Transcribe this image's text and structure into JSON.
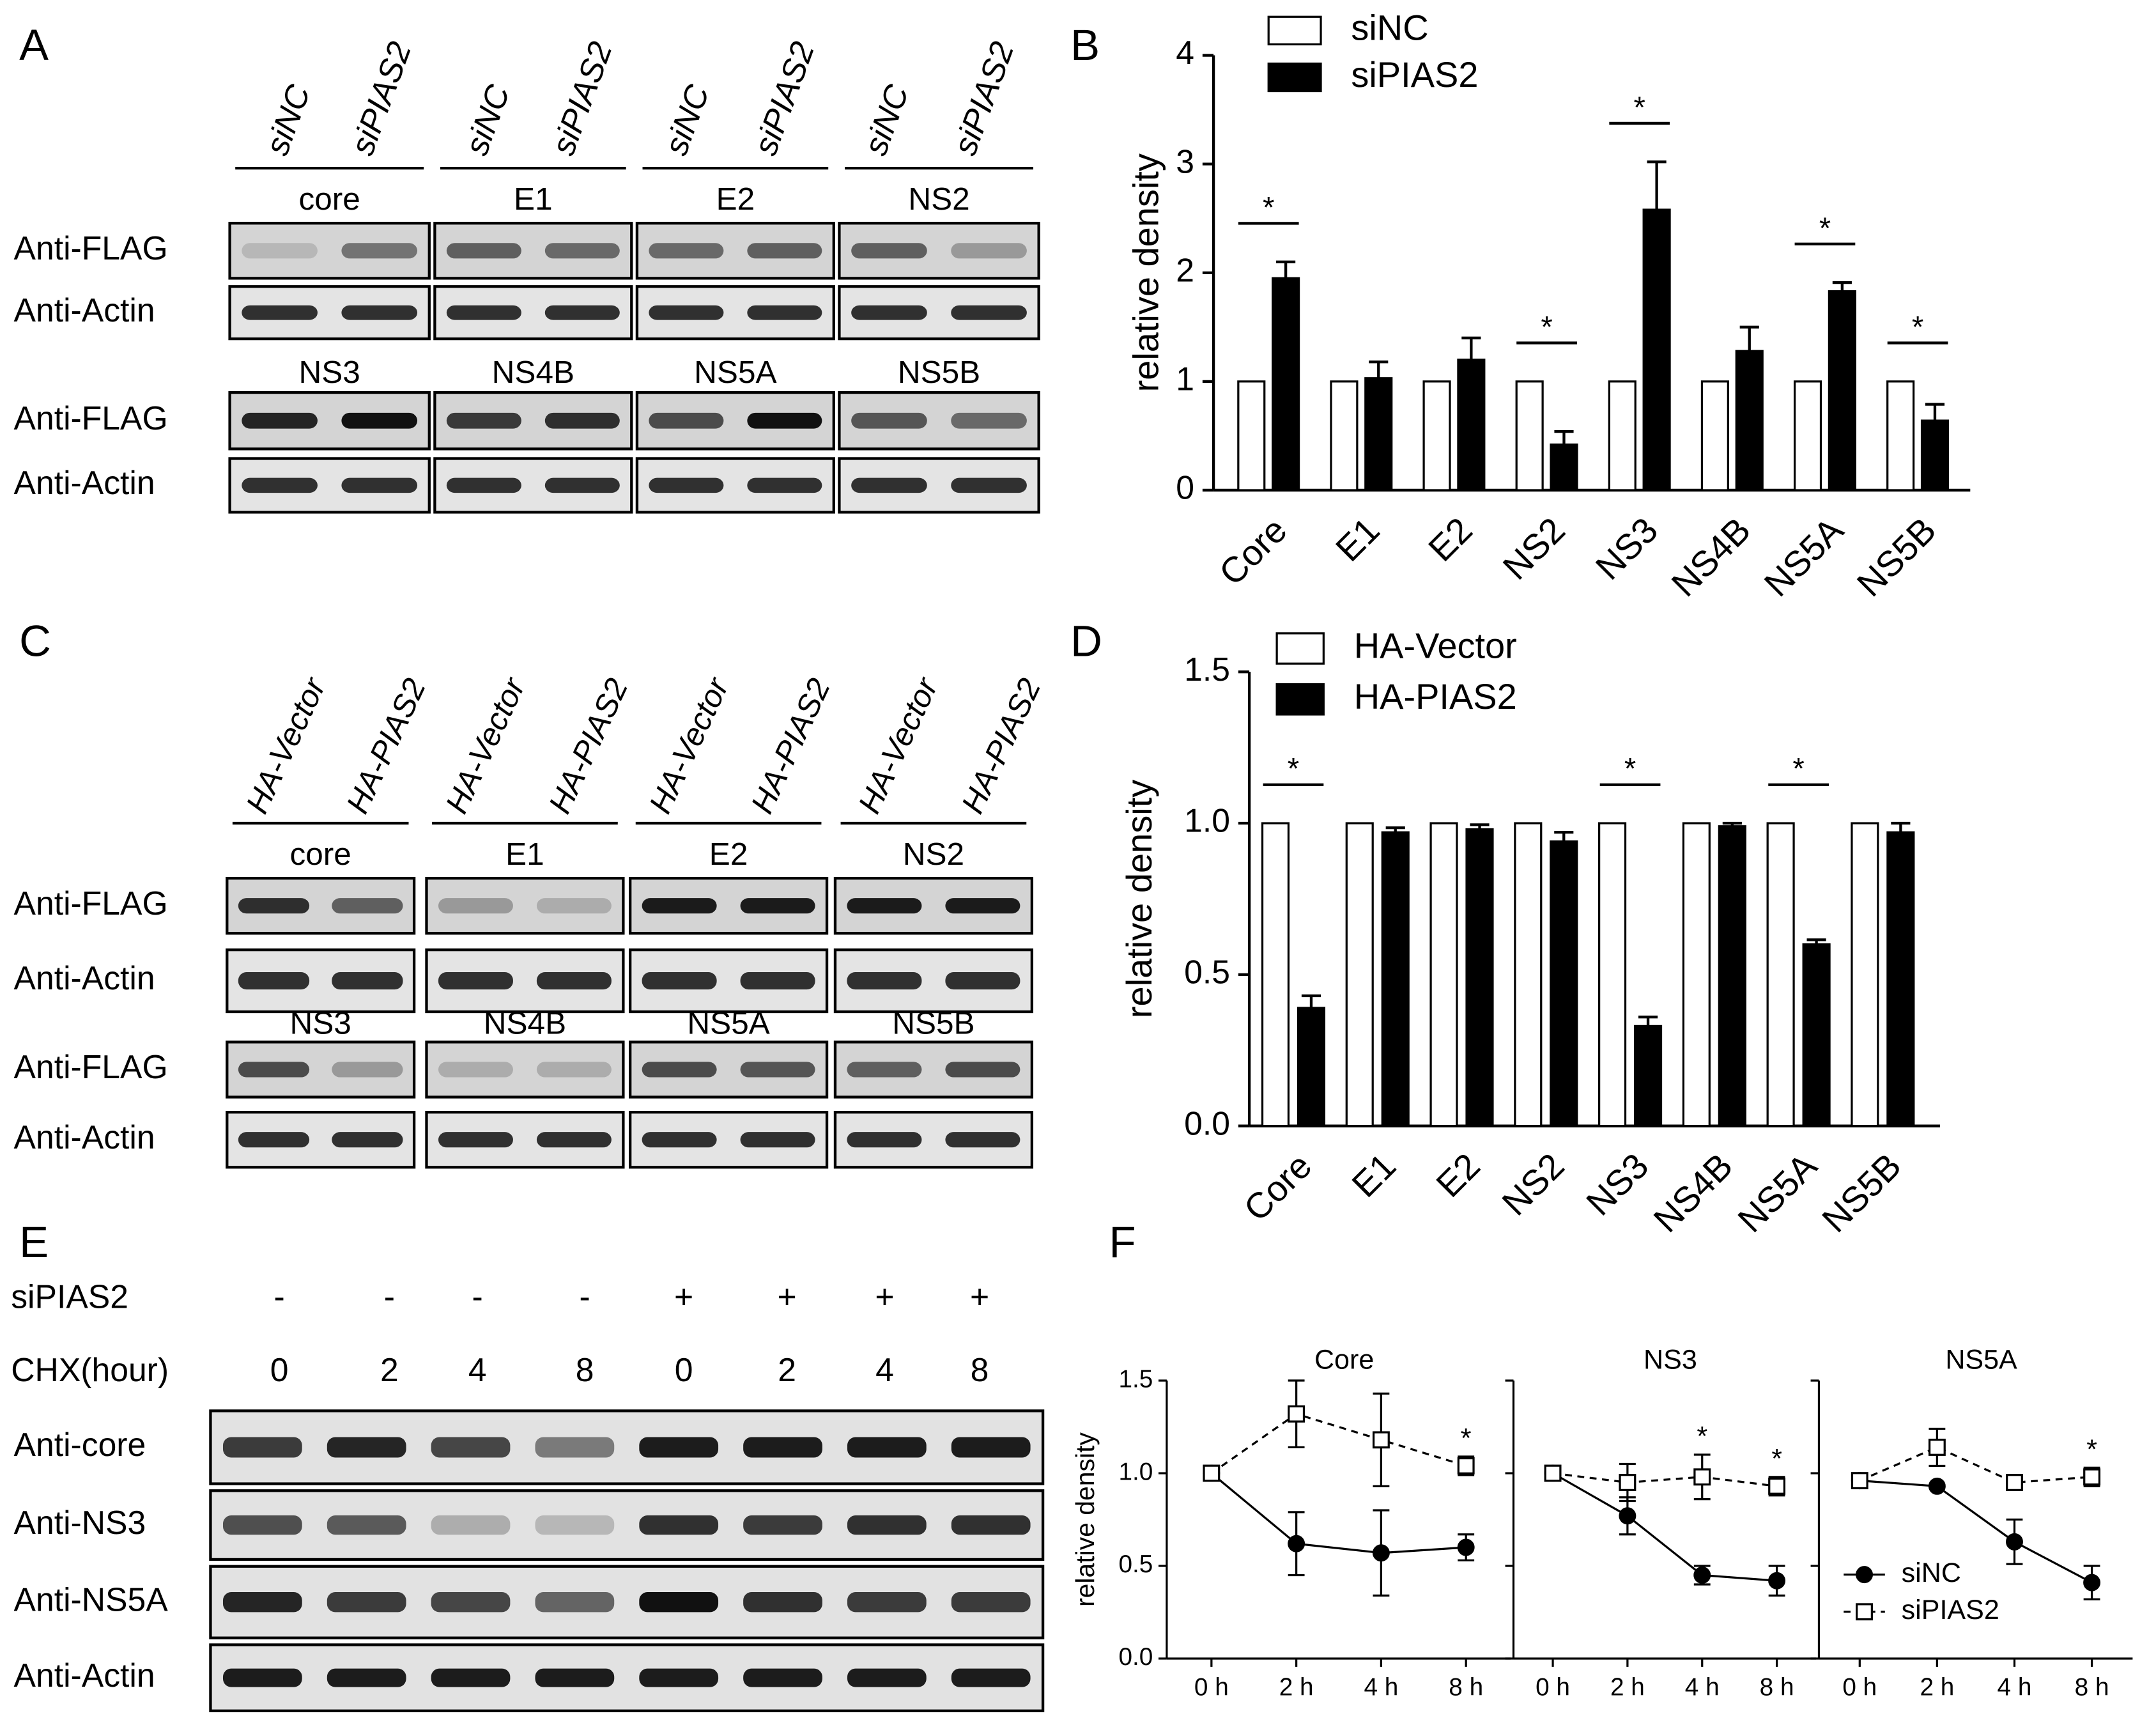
{
  "panel_labels": [
    "A",
    "B",
    "C",
    "D",
    "E",
    "F"
  ],
  "blot_A": {
    "lanes": [
      "siNC",
      "siPIAS2",
      "siNC",
      "siPIAS2",
      "siNC",
      "siPIAS2",
      "siNC",
      "siPIAS2"
    ],
    "proteins": [
      [
        "core",
        "E1",
        "E2",
        "NS2"
      ],
      [
        "NS3",
        "NS4B",
        "NS5A",
        "NS5B"
      ]
    ],
    "rows": [
      [
        "Anti-FLAG",
        "Anti-Actin"
      ],
      [
        "Anti-FLAG",
        "Anti-Actin"
      ]
    ]
  },
  "blot_C": {
    "lanes": [
      "HA-Vector",
      "HA-PIAS2",
      "HA-Vector",
      "HA-PIAS2",
      "HA-Vector",
      "HA-PIAS2",
      "HA-Vector",
      "HA-PIAS2"
    ],
    "proteins": [
      [
        "core",
        "E1",
        "E2",
        "NS2"
      ],
      [
        "NS3",
        "NS4B",
        "NS5A",
        "NS5B"
      ]
    ],
    "rows": [
      [
        "Anti-FLAG",
        "Anti-Actin"
      ],
      [
        "Anti-FLAG",
        "Anti-Actin"
      ]
    ]
  },
  "blot_E": {
    "conditions": [
      {
        "label": "siPIAS2",
        "values": [
          "-",
          "-",
          "-",
          "-",
          "+",
          "+",
          "+",
          "+"
        ]
      },
      {
        "label": "CHX(hour)",
        "values": [
          0,
          2,
          4,
          8,
          0,
          2,
          4,
          8
        ]
      }
    ],
    "rows": [
      "Anti-core",
      "Anti-NS3",
      "Anti-NS5A",
      "Anti-Actin"
    ]
  },
  "chart_data": [
    {
      "type": "bar",
      "ylabel": "relative density",
      "categories": [
        "Core",
        "E1",
        "E2",
        "NS2",
        "NS3",
        "NS4B",
        "NS5A",
        "NS5B"
      ],
      "series": [
        {
          "name": "siNC",
          "color": "#ffffff",
          "values": [
            1,
            1,
            1,
            1,
            1,
            1,
            1,
            1
          ]
        },
        {
          "name": "siPIAS2",
          "color": "#000000",
          "values": [
            1.95,
            1.03,
            1.2,
            0.42,
            2.58,
            1.28,
            1.83,
            0.64
          ],
          "errors": [
            0.15,
            0.15,
            0.2,
            0.12,
            0.44,
            0.22,
            0.08,
            0.15
          ]
        }
      ],
      "significance_labels": [
        "*",
        null,
        null,
        "*",
        "*",
        null,
        "*",
        "*"
      ],
      "ylim": [
        0,
        4
      ],
      "yticks": [
        0,
        1,
        2,
        3,
        4
      ],
      "legend": "upper left"
    },
    {
      "type": "bar",
      "ylabel": "relative density",
      "categories": [
        "Core",
        "E1",
        "E2",
        "NS2",
        "NS3",
        "NS4B",
        "NS5A",
        "NS5B"
      ],
      "series": [
        {
          "name": "HA-Vector",
          "color": "#ffffff",
          "values": [
            1,
            1,
            1,
            1,
            1,
            1,
            1,
            1
          ]
        },
        {
          "name": "HA-PIAS2",
          "color": "#000000",
          "values": [
            0.39,
            0.97,
            0.98,
            0.94,
            0.33,
            0.99,
            0.6,
            0.97
          ],
          "errors": [
            0.04,
            0.015,
            0.015,
            0.03,
            0.03,
            0.01,
            0.015,
            0.03
          ]
        }
      ],
      "significance_labels": [
        "*",
        null,
        null,
        null,
        "*",
        null,
        "*",
        null
      ],
      "ylim": [
        0,
        1.5
      ],
      "yticks": [
        {
          "value": 0,
          "label": "0.0"
        },
        {
          "value": 0.5,
          "label": "0.5"
        },
        {
          "value": 1,
          "label": "1.0"
        },
        {
          "value": 1.5,
          "label": "1.5"
        }
      ],
      "legend": "upper left"
    },
    {
      "type": "line",
      "title": "Core",
      "ylabel": "relative density",
      "categories": [
        "0 h",
        "2 h",
        "4 h",
        "8 h"
      ],
      "series": [
        {
          "color": "#000000",
          "marker": "circle",
          "filled": true,
          "line_style": "solid",
          "values": [
            1.0,
            0.62,
            0.57,
            0.6
          ],
          "errors": [
            0,
            0.17,
            0.23,
            0.07
          ]
        },
        {
          "color": "#000000",
          "marker": "square",
          "filled": false,
          "line_style": "dashed",
          "values": [
            1.0,
            1.32,
            1.18,
            1.04
          ],
          "errors": [
            0,
            0.18,
            0.25,
            0.05
          ]
        }
      ],
      "significance_labels": [
        null,
        null,
        null,
        "*"
      ],
      "ylim": [
        0,
        1.5
      ],
      "yticks": [
        {
          "value": 0,
          "label": "0.0"
        },
        {
          "value": 0.5,
          "label": "0.5"
        },
        {
          "value": 1,
          "label": "1.0"
        },
        {
          "value": 1.5,
          "label": "1.5"
        }
      ]
    },
    {
      "type": "line",
      "title": "NS3",
      "categories": [
        "0 h",
        "2 h",
        "4 h",
        "8 h"
      ],
      "series": [
        {
          "color": "#000000",
          "marker": "circle",
          "filled": true,
          "line_style": "solid",
          "values": [
            1.0,
            0.77,
            0.45,
            0.42
          ],
          "errors": [
            0,
            0.1,
            0.05,
            0.08
          ]
        },
        {
          "color": "#000000",
          "marker": "square",
          "filled": false,
          "line_style": "dashed",
          "values": [
            1.0,
            0.95,
            0.98,
            0.93
          ],
          "errors": [
            0,
            0.1,
            0.12,
            0.05
          ]
        }
      ],
      "significance_labels": [
        null,
        null,
        "*",
        "*"
      ],
      "ylim": [
        0,
        1.5
      ],
      "yticks": [
        0,
        0.5,
        1,
        1.5
      ]
    },
    {
      "type": "line",
      "title": "NS5A",
      "categories": [
        "0 h",
        "2 h",
        "4 h",
        "8 h"
      ],
      "series": [
        {
          "name": "siNC",
          "color": "#000000",
          "marker": "circle",
          "filled": true,
          "line_style": "solid",
          "values": [
            0.96,
            0.93,
            0.63,
            0.41
          ],
          "errors": [
            0,
            0,
            0.12,
            0.09
          ]
        },
        {
          "name": "siPIAS2",
          "color": "#000000",
          "marker": "square",
          "filled": false,
          "line_style": "dashed",
          "values": [
            0.96,
            1.14,
            0.95,
            0.98
          ],
          "errors": [
            0,
            0.1,
            0,
            0.05
          ]
        }
      ],
      "significance_labels": [
        null,
        null,
        null,
        "*"
      ],
      "ylim": [
        0,
        1.5
      ],
      "yticks": [
        0,
        0.5,
        1,
        1.5
      ],
      "legend": "lower right"
    }
  ]
}
